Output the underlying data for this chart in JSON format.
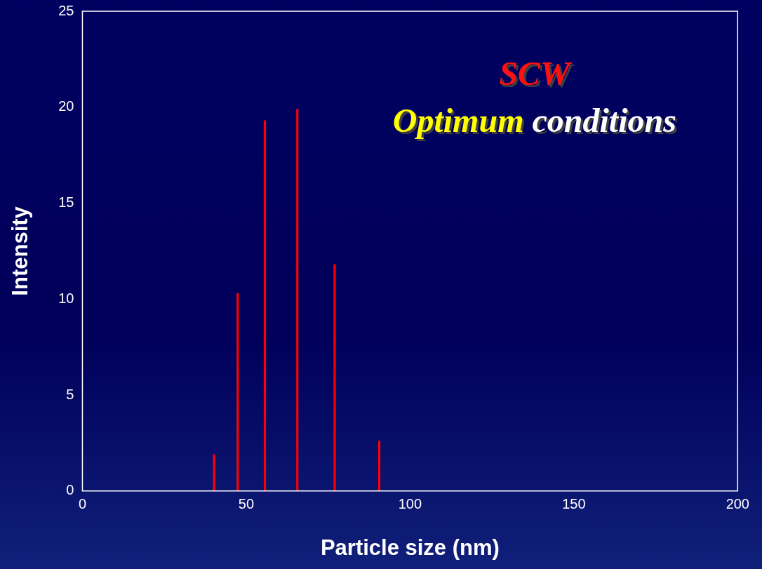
{
  "chart_data": {
    "type": "bar",
    "xlabel": "Particle size (nm)",
    "ylabel": "Intensity",
    "x": [
      40.2,
      47.4,
      55.7,
      65.6,
      77.0,
      90.6
    ],
    "values": [
      1.9,
      10.3,
      19.3,
      19.9,
      11.8,
      2.6
    ],
    "color": "#ff0000",
    "xlim": [
      0,
      200
    ],
    "xticks": [
      0,
      50,
      100,
      150,
      200
    ],
    "ylim": [
      0,
      25
    ],
    "yticks": [
      0,
      5,
      10,
      15,
      20,
      25
    ],
    "grid": false,
    "legend": false,
    "annotations": [
      "SCW",
      "Optimum conditions"
    ]
  }
}
